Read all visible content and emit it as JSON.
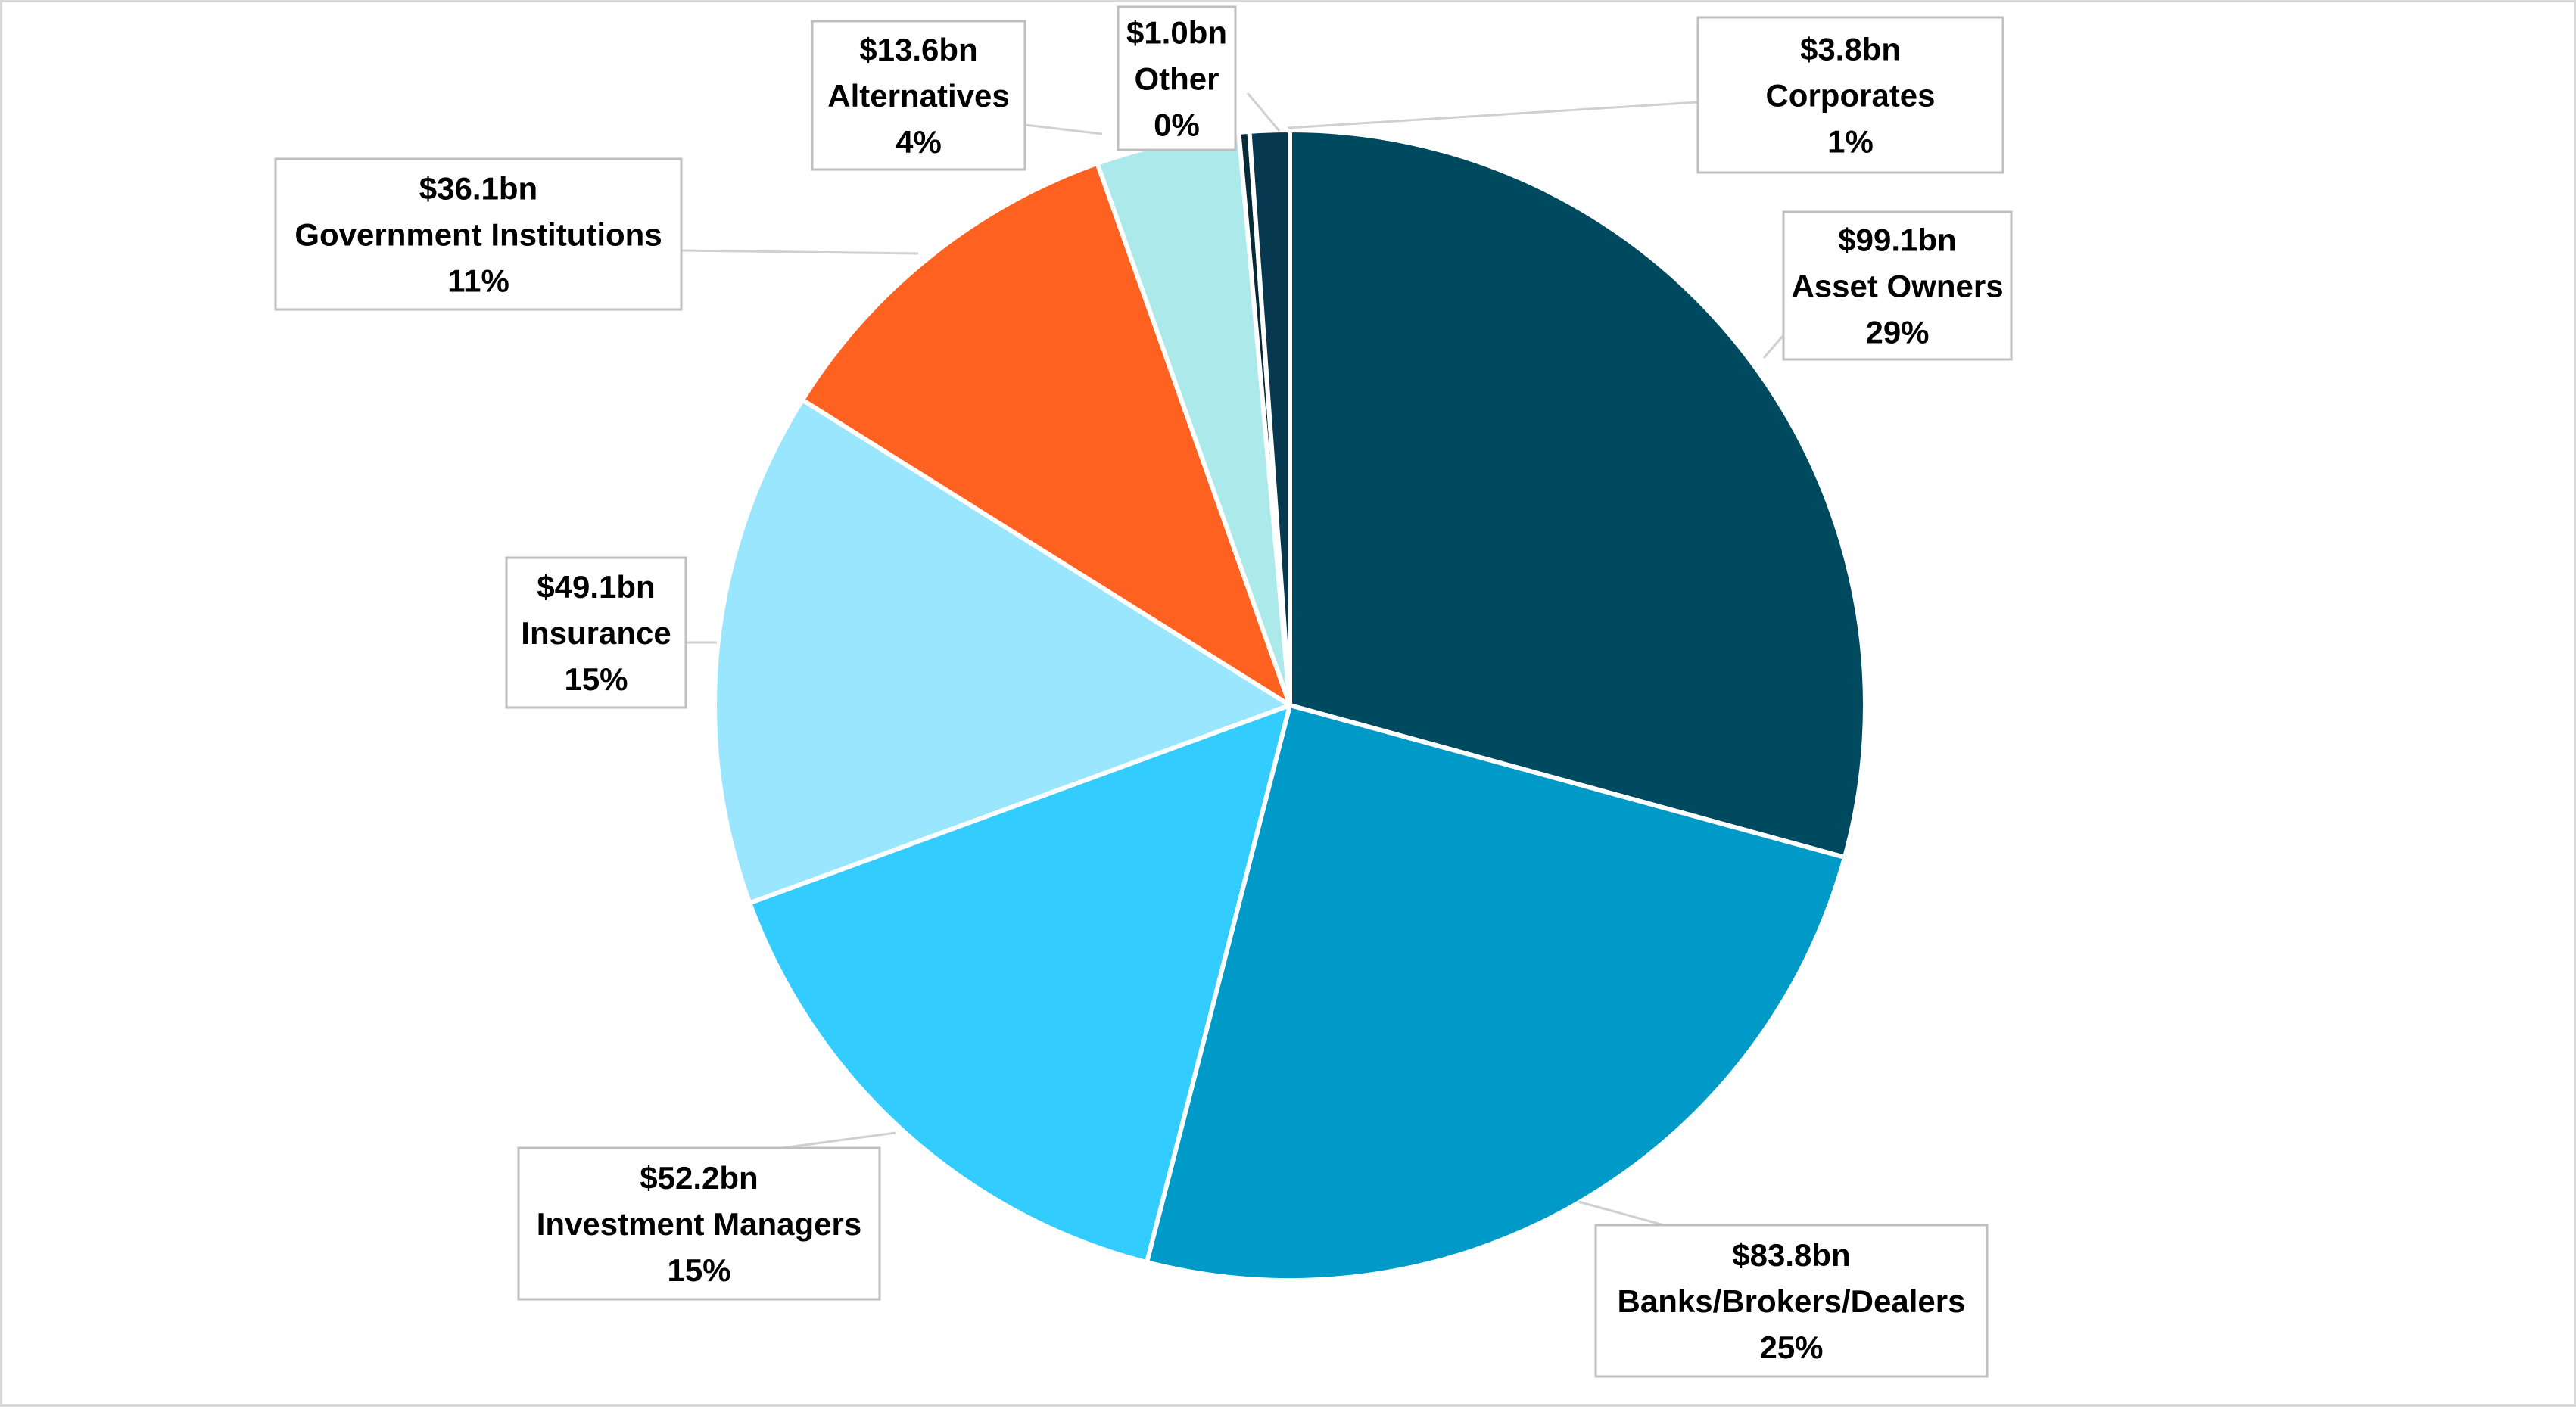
{
  "chart_data": {
    "type": "pie",
    "title": "",
    "slices": [
      {
        "label": "Asset Owners",
        "amount": "$99.1bn",
        "value": 99.1,
        "pct": "29%",
        "color": "#004A60"
      },
      {
        "label": "Banks/Brokers/Dealers",
        "amount": "$83.8bn",
        "value": 83.8,
        "pct": "25%",
        "color": "#009AC9"
      },
      {
        "label": "Investment Managers",
        "amount": "$52.2bn",
        "value": 52.2,
        "pct": "15%",
        "color": "#32CCFE"
      },
      {
        "label": "Insurance",
        "amount": "$49.1bn",
        "value": 49.1,
        "pct": "15%",
        "color": "#99E6FE"
      },
      {
        "label": "Government Institutions",
        "amount": "$36.1bn",
        "value": 36.1,
        "pct": "11%",
        "color": "#FF6121"
      },
      {
        "label": "Alternatives",
        "amount": "$13.6bn",
        "value": 13.6,
        "pct": "4%",
        "color": "#ABE9EA"
      },
      {
        "label": "Other",
        "amount": "$1.0bn",
        "value": 1.0,
        "pct": "0%",
        "color": "#062A36"
      },
      {
        "label": "Corporates",
        "amount": "$3.8bn",
        "value": 3.8,
        "pct": "1%",
        "color": "#06394F"
      }
    ],
    "legend": "none",
    "data_labels": "callouts with leader lines"
  }
}
